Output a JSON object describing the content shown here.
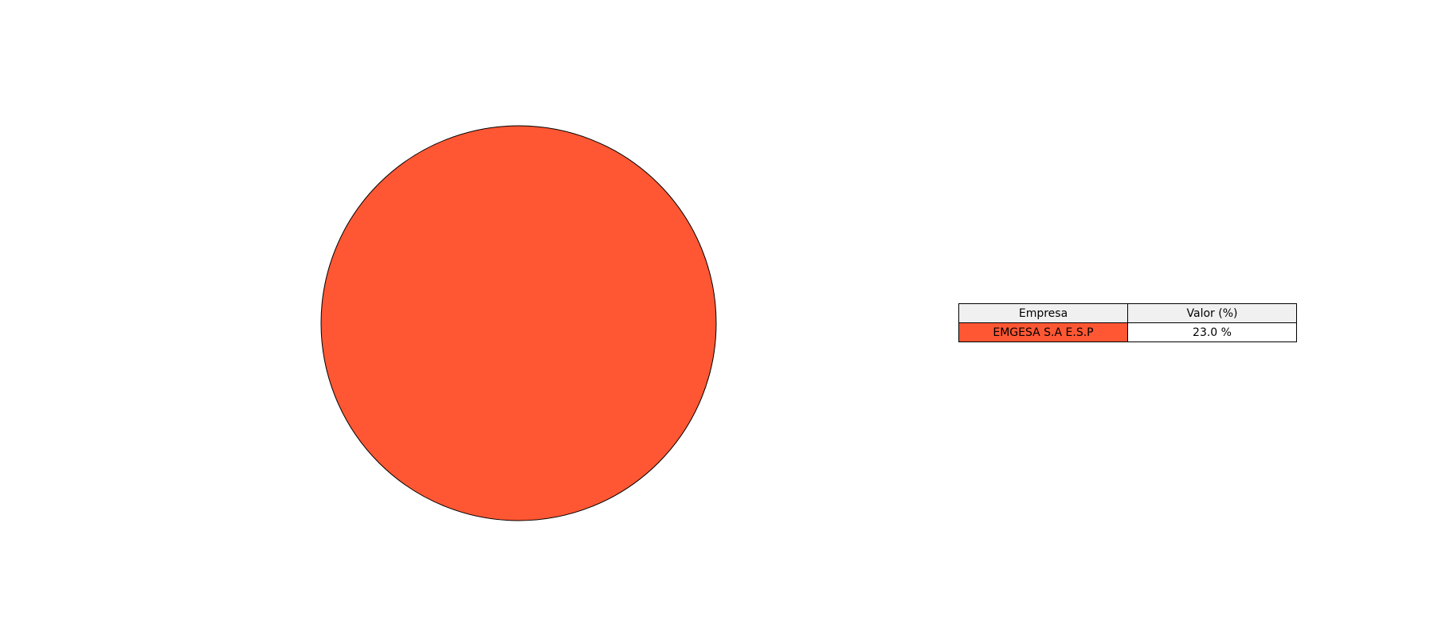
{
  "chart_data": {
    "type": "pie",
    "categories": [
      "EMGESA S.A E.S.P"
    ],
    "values": [
      23.0
    ],
    "colors": [
      "#ff5733"
    ],
    "edge_color": "#000000",
    "table": {
      "headers": [
        "Empresa",
        "Valor (%)"
      ],
      "header_color": "#f0f0f0",
      "rows": [
        {
          "label": "EMGESA S.A E.S.P",
          "value": "23.0 %",
          "color": "#ff5733"
        }
      ]
    }
  }
}
